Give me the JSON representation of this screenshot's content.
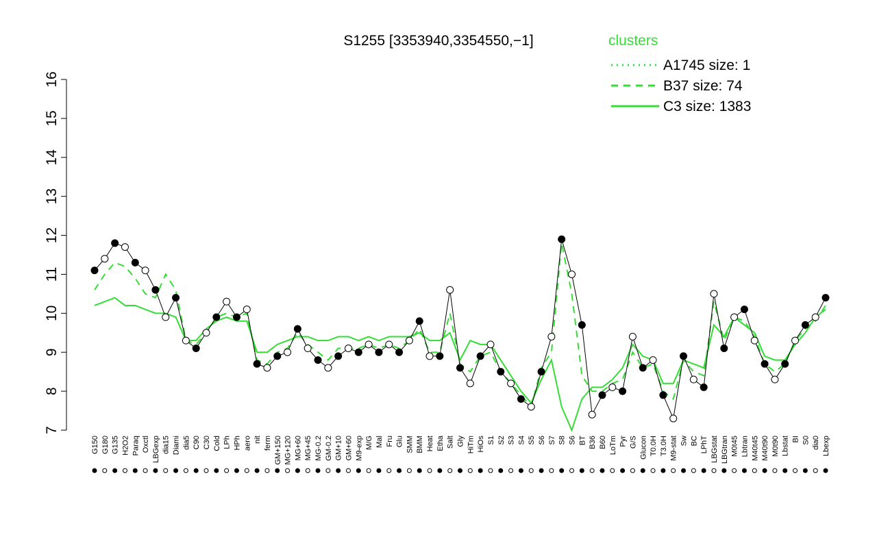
{
  "chart_data": {
    "type": "line",
    "title": "S1255 [3353940,3354550,−1]",
    "categories": [
      "G150",
      "G180",
      "G135",
      "H2O2",
      "Paraq",
      "Oxctl",
      "LBGexp",
      "dia15",
      "Diami",
      "dia5",
      "C90",
      "C30",
      "Cold",
      "LPh",
      "HPh",
      "aero",
      "nit",
      "ferm",
      "GM+150",
      "MG+120",
      "MG+60",
      "MG+45",
      "MG-0.2",
      "GM-0.2",
      "GM+10",
      "GM+60",
      "M9-exp",
      "M/G",
      "Mal",
      "Fru",
      "Glu",
      "SMM",
      "BMM",
      "Heat",
      "Etha",
      "Salt",
      "Gly",
      "HiTm",
      "HiOs",
      "S1",
      "S2",
      "S3",
      "S4",
      "S5",
      "S6",
      "S7",
      "S8",
      "S6",
      "BT",
      "B36",
      "B60",
      "LoTm",
      "Pyr",
      "G/S",
      "Glucon",
      "T0.0H",
      "T3.0H",
      "M9-stat",
      "Sw",
      "BC",
      "LPhT",
      "LBGstat",
      "LBGtran",
      "M0t45",
      "Lbtran",
      "M40t45",
      "M40t90",
      "M0t90",
      "Lbstat",
      "BI",
      "S0",
      "dia0",
      "Lbexp"
    ],
    "values": [
      11.1,
      11.4,
      11.8,
      11.7,
      11.3,
      11.1,
      10.6,
      9.9,
      10.4,
      9.3,
      9.1,
      9.5,
      9.9,
      10.3,
      9.9,
      10.1,
      8.7,
      8.6,
      8.9,
      9.0,
      9.6,
      9.1,
      8.8,
      8.6,
      8.9,
      9.1,
      9.0,
      9.2,
      9.0,
      9.2,
      9.0,
      9.3,
      9.8,
      8.9,
      8.9,
      10.6,
      8.6,
      8.2,
      8.9,
      9.2,
      8.5,
      8.2,
      7.8,
      7.6,
      8.5,
      9.4,
      11.9,
      11.0,
      9.7,
      7.4,
      7.9,
      8.1,
      8.0,
      9.4,
      8.6,
      8.8,
      7.9,
      7.3,
      8.9,
      8.3,
      8.1,
      10.5,
      9.1,
      9.9,
      10.1,
      9.3,
      8.7,
      8.3,
      8.7,
      9.3,
      9.7,
      9.9,
      10.4
    ],
    "series": [
      {
        "name": "A1745 size: 1",
        "color": "#33dd33",
        "dash": "dotted",
        "values": [
          null,
          null,
          null,
          null,
          null,
          null,
          null,
          null,
          null,
          null,
          null,
          null,
          null,
          null,
          null,
          null,
          null,
          null,
          null,
          null,
          null,
          null,
          null,
          null,
          null,
          null,
          null,
          null,
          null,
          null,
          null,
          null,
          null,
          null,
          null,
          null,
          null,
          null,
          null,
          null,
          null,
          null,
          null,
          null,
          null,
          null,
          null,
          null,
          null,
          null,
          null,
          null,
          null,
          null,
          null,
          null,
          null,
          null,
          null,
          null,
          null,
          null,
          null,
          null,
          null,
          null,
          null,
          null,
          null,
          null,
          null,
          null,
          null
        ]
      },
      {
        "name": "B37 size: 74",
        "color": "#33dd33",
        "dash": "dashed",
        "values": [
          10.6,
          11.0,
          11.3,
          11.2,
          10.9,
          10.5,
          10.4,
          11.0,
          10.6,
          9.3,
          9.2,
          9.5,
          9.9,
          10.0,
          9.9,
          10.0,
          8.8,
          8.7,
          9.0,
          9.1,
          9.5,
          9.2,
          9.0,
          8.8,
          9.1,
          9.1,
          9.1,
          9.2,
          9.1,
          9.2,
          9.1,
          9.3,
          9.6,
          9.0,
          9.0,
          10.0,
          8.7,
          8.5,
          8.9,
          9.0,
          8.5,
          8.2,
          7.9,
          7.6,
          8.6,
          9.0,
          11.8,
          10.5,
          8.4,
          8.0,
          8.0,
          8.2,
          8.3,
          9.0,
          8.6,
          8.7,
          8.0,
          7.8,
          8.8,
          8.5,
          8.4,
          10.3,
          9.3,
          9.9,
          9.8,
          9.4,
          8.7,
          8.5,
          8.7,
          9.3,
          9.6,
          9.8,
          10.2
        ]
      },
      {
        "name": "C3 size: 1383",
        "color": "#33dd33",
        "dash": "solid",
        "values": [
          10.2,
          10.3,
          10.4,
          10.2,
          10.2,
          10.1,
          10.0,
          10.0,
          9.9,
          9.3,
          9.3,
          9.6,
          9.8,
          9.9,
          9.8,
          9.8,
          9.0,
          9.0,
          9.2,
          9.3,
          9.4,
          9.4,
          9.3,
          9.3,
          9.4,
          9.4,
          9.3,
          9.4,
          9.3,
          9.4,
          9.4,
          9.4,
          9.5,
          9.3,
          9.3,
          9.5,
          8.8,
          9.3,
          9.2,
          9.2,
          8.8,
          8.4,
          8.0,
          7.7,
          8.3,
          8.8,
          7.6,
          7.0,
          7.8,
          8.1,
          8.1,
          8.3,
          8.6,
          9.2,
          8.9,
          8.8,
          8.2,
          8.2,
          8.8,
          8.7,
          8.6,
          9.7,
          9.4,
          9.9,
          9.7,
          9.5,
          8.9,
          8.8,
          8.8,
          9.2,
          9.5,
          9.9,
          10.1
        ]
      }
    ],
    "legend_title": "clusters",
    "ylim": [
      7,
      16
    ],
    "yticks": [
      7,
      8,
      9,
      10,
      11,
      12,
      13,
      14,
      15,
      16
    ]
  }
}
